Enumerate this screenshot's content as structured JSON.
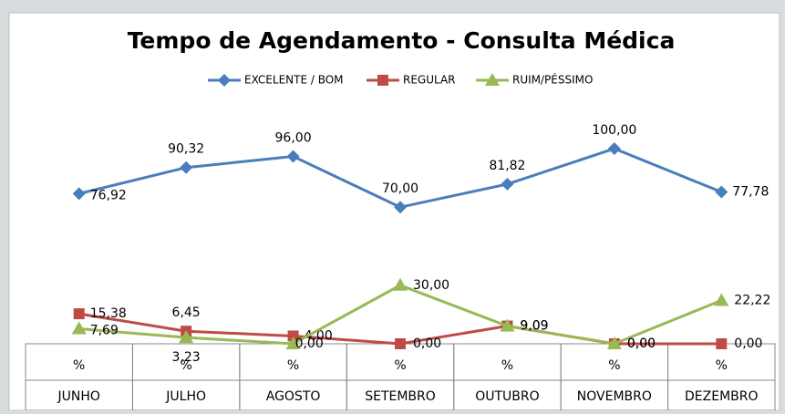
{
  "chart_data": {
    "type": "line",
    "title": "Tempo de Agendamento - Consulta Médica",
    "categories": [
      "JUNHO",
      "JULHO",
      "AGOSTO",
      "SETEMBRO",
      "OUTUBRO",
      "NOVEMBRO",
      "DEZEMBRO"
    ],
    "category_units": [
      "%",
      "%",
      "%",
      "%",
      "%",
      "%",
      "%"
    ],
    "series": [
      {
        "name": "EXCELENTE / BOM",
        "color": "#4a7ebb",
        "marker": "diamond",
        "values": [
          76.92,
          90.32,
          96.0,
          70.0,
          81.82,
          100.0,
          77.78
        ],
        "value_labels": [
          "76,92",
          "90,32",
          "96,00",
          "70,00",
          "81,82",
          "100,00",
          "77,78"
        ]
      },
      {
        "name": "REGULAR",
        "color": "#be4b48",
        "marker": "square",
        "values": [
          15.38,
          6.45,
          4.0,
          0.0,
          9.09,
          0.0,
          0.0
        ],
        "value_labels": [
          "15,38",
          "6,45",
          "4,00",
          "0,00",
          "9,09",
          "0,00",
          "0,00"
        ]
      },
      {
        "name": "RUIM/PÉSSIMO",
        "color": "#98b954",
        "marker": "triangle",
        "values": [
          7.69,
          3.23,
          0.0,
          30.0,
          9.09,
          0.0,
          22.22
        ],
        "value_labels": [
          "7,69",
          "3,23",
          "0,00",
          "30,00",
          "9,09",
          "0,00",
          "22,22"
        ]
      }
    ],
    "ylim": [
      0,
      100
    ],
    "legend": "top"
  }
}
